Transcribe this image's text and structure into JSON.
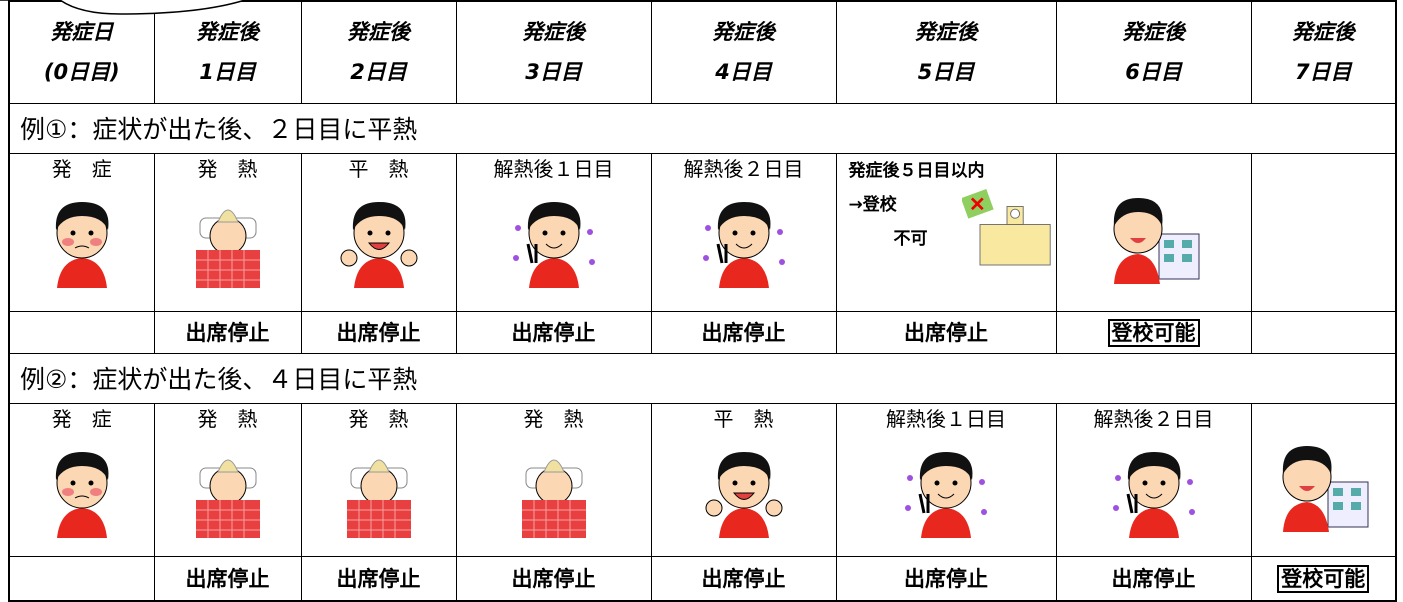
{
  "header": [
    {
      "line1": "発症日",
      "line2": "(0日目)"
    },
    {
      "line1": "発症後",
      "line2": "1日目"
    },
    {
      "line1": "発症後",
      "line2": "2日目"
    },
    {
      "line1": "発症後",
      "line2": "3日目"
    },
    {
      "line1": "発症後",
      "line2": "4日目"
    },
    {
      "line1": "発症後",
      "line2": "5日目"
    },
    {
      "line1": "発症後",
      "line2": "6日目"
    },
    {
      "line1": "発症後",
      "line2": "7日目"
    }
  ],
  "examples": [
    {
      "title": "例①：症状が出た後、２日目に平熱",
      "labels": [
        "発　症",
        "発　熱",
        "平　熱",
        "解熱後１日目",
        "解熱後２日目",
        null,
        null,
        null
      ],
      "notice": [
        "発症後５日目以内",
        "→登校",
        "不可"
      ],
      "status": [
        null,
        "出席停止",
        "出席停止",
        "出席停止",
        "出席停止",
        "出席停止",
        "登校可能",
        null
      ]
    },
    {
      "title": "例②：症状が出た後、４日目に平熱",
      "labels": [
        "発　症",
        "発　熱",
        "発　熱",
        "発　熱",
        "平　熱",
        "解熱後１日目",
        "解熱後２日目",
        null
      ],
      "status": [
        null,
        "出席停止",
        "出席停止",
        "出席停止",
        "出席停止",
        "出席停止",
        "出席停止",
        "登校可能"
      ]
    }
  ]
}
